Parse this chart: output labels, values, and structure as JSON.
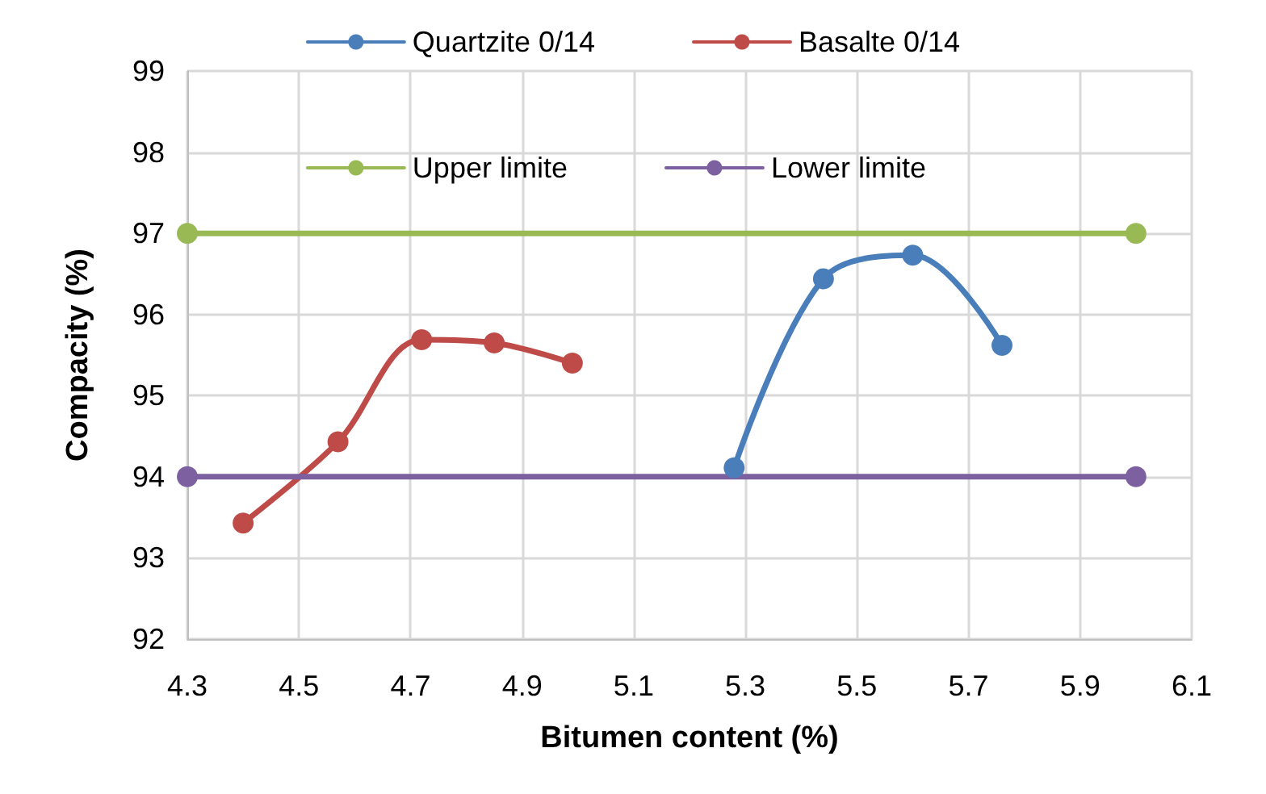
{
  "chart_data": {
    "type": "line",
    "xlabel": "Bitumen content (%)",
    "ylabel": "Compacity (%)",
    "xlim": [
      4.3,
      6.1
    ],
    "xticks": [
      4.3,
      4.5,
      4.7,
      4.9,
      5.1,
      5.3,
      5.5,
      5.7,
      5.9,
      6.1
    ],
    "ylim": [
      92,
      99
    ],
    "yticks": [
      92,
      93,
      94,
      95,
      96,
      97,
      98,
      99
    ],
    "grid": true,
    "legend": "top",
    "marker": "circle",
    "line_style": "solid",
    "series": [
      {
        "name": "Quartzite 0/14",
        "color": "#4a7ebb",
        "x": [
          5.28,
          5.44,
          5.6,
          5.76
        ],
        "values": [
          94.11,
          96.44,
          96.73,
          95.62
        ]
      },
      {
        "name": "Basalte 0/14",
        "color": "#be4b48",
        "x": [
          4.4,
          4.57,
          4.72,
          4.85,
          4.99
        ],
        "values": [
          93.43,
          94.43,
          95.69,
          95.65,
          95.4
        ]
      },
      {
        "name": "Upper limite",
        "color": "#98b954",
        "x": [
          4.3,
          6.0
        ],
        "values": [
          97,
          97
        ]
      },
      {
        "name": "Lower limite",
        "color": "#7d60a0",
        "x": [
          4.3,
          6.0
        ],
        "values": [
          94,
          94
        ]
      }
    ]
  }
}
